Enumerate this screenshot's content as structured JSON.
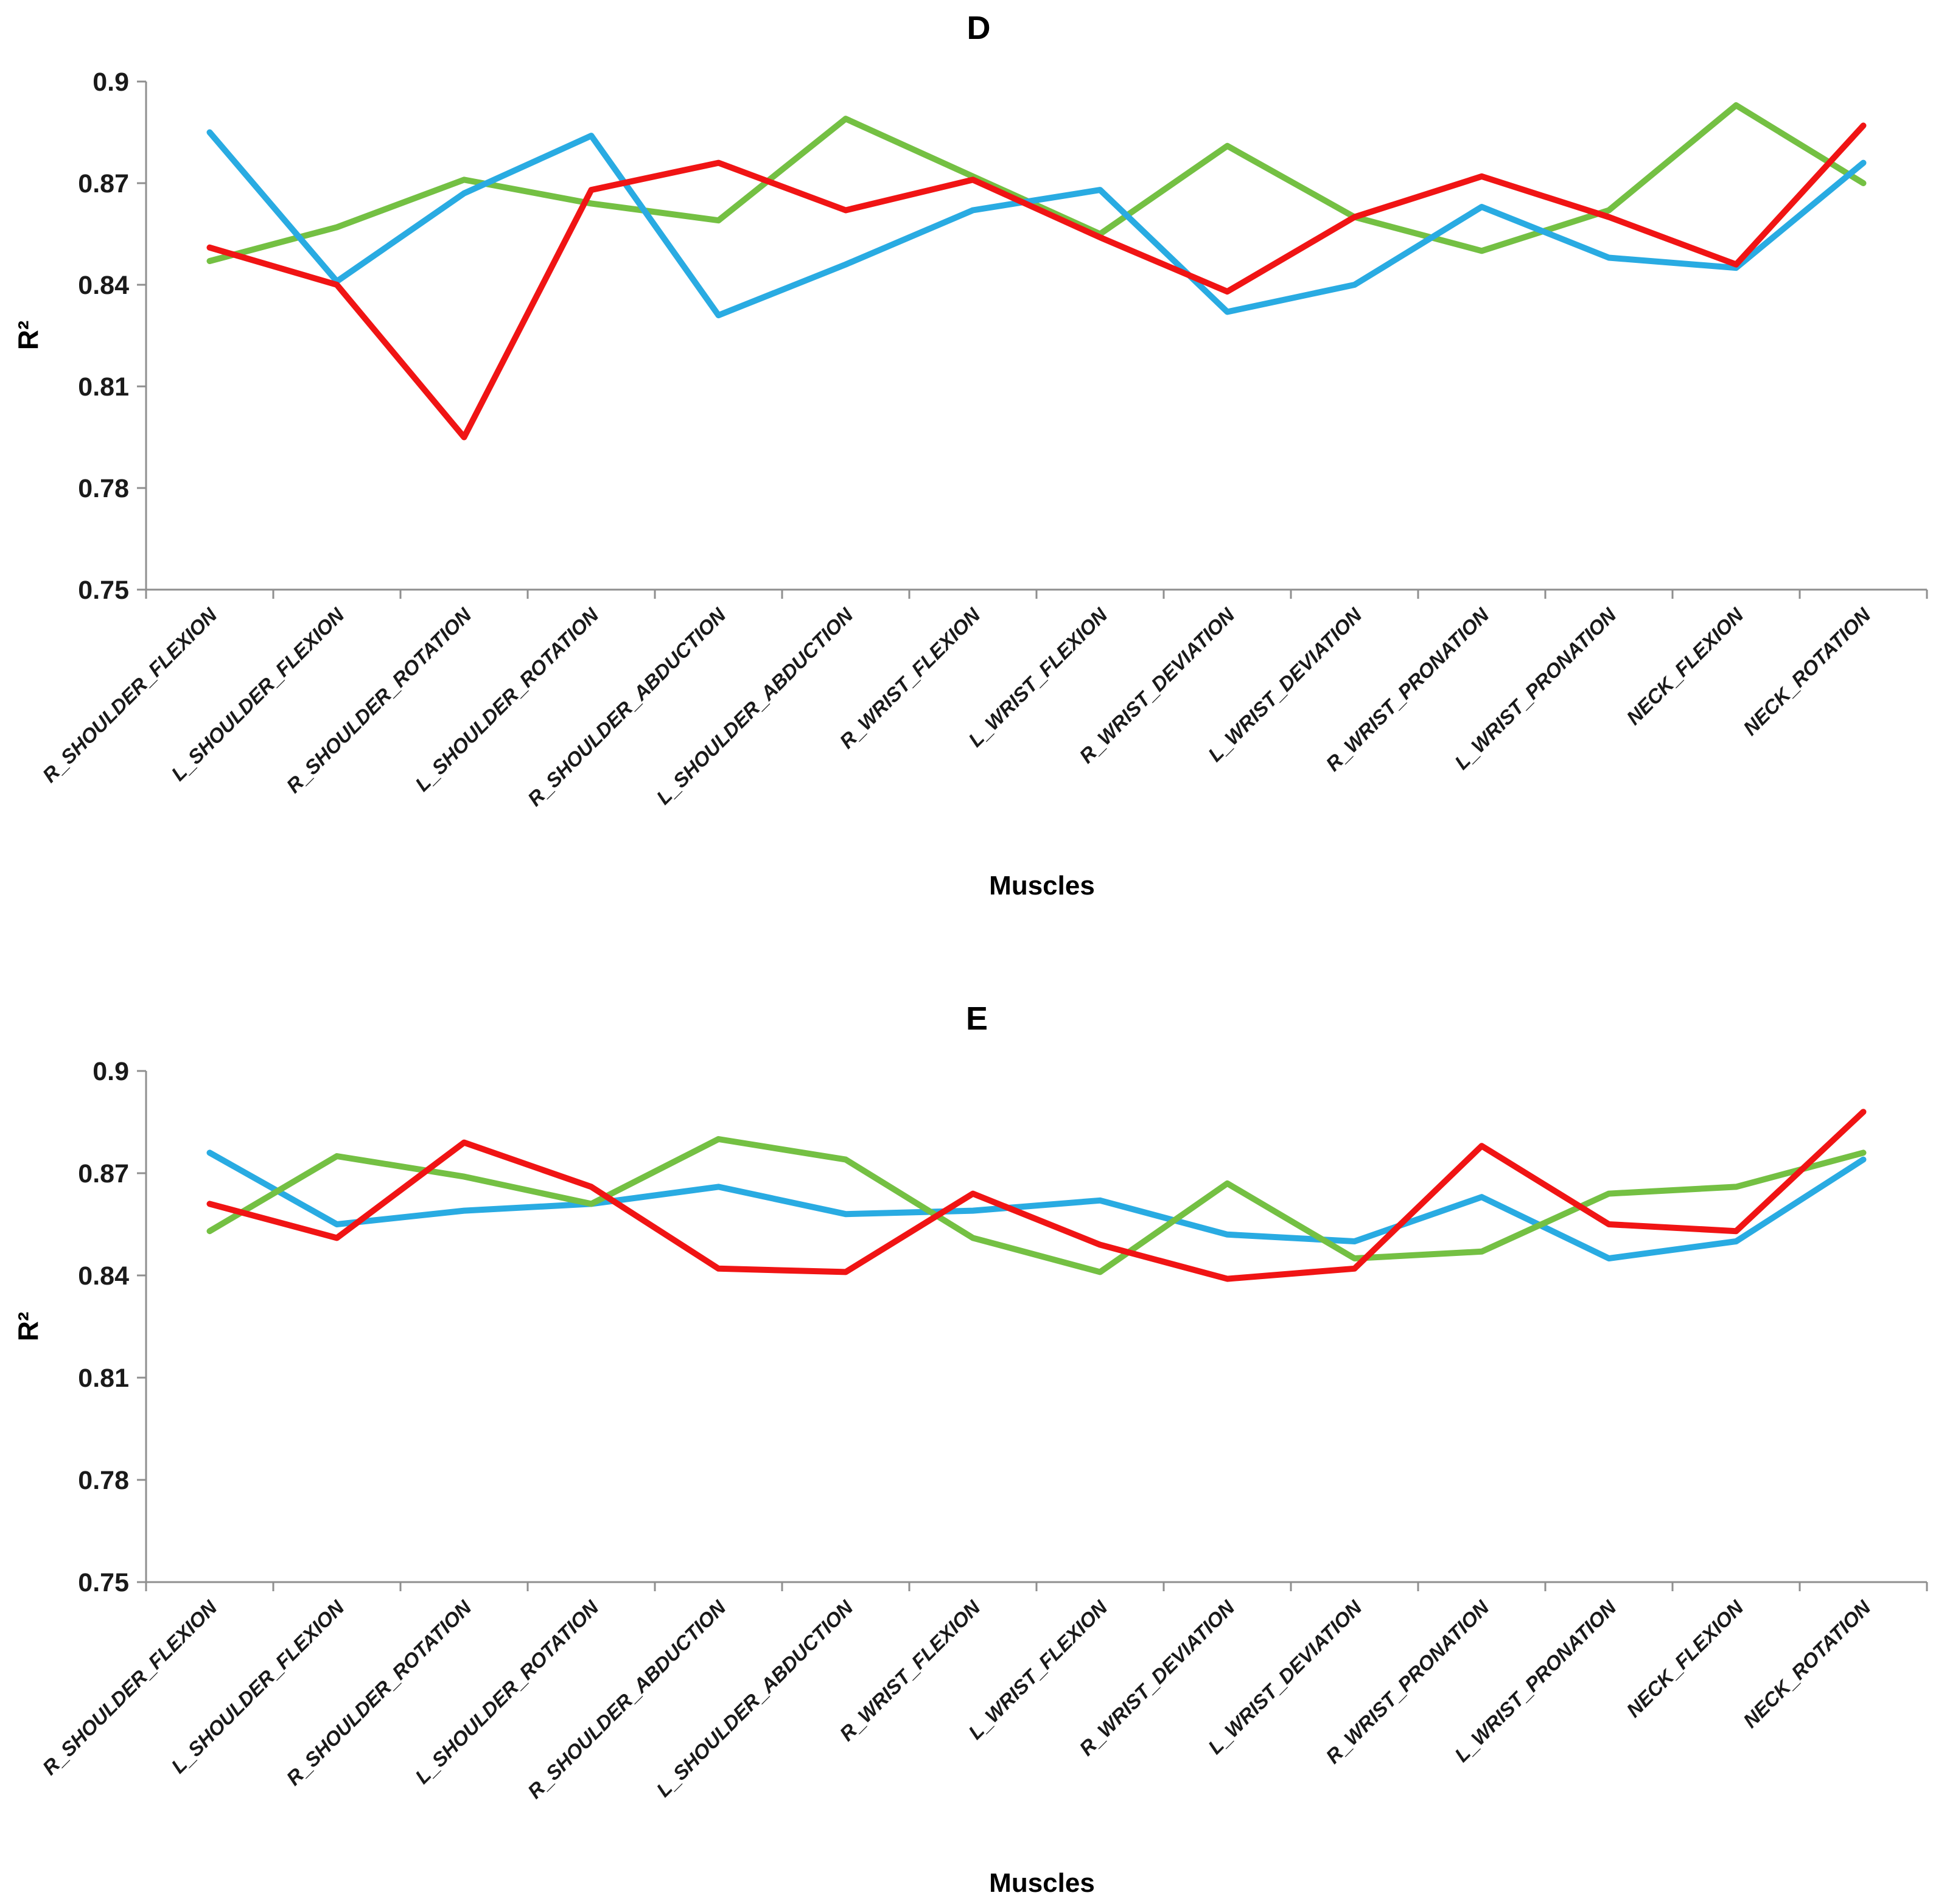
{
  "figure": {
    "background_color": "#ffffff",
    "text_color": "#1a1a1a",
    "axis_color": "#8f8f8f"
  },
  "chart_data": [
    {
      "type": "line",
      "title": "D",
      "xlabel": "Muscles",
      "ylabel": "R²",
      "ylim": [
        0.75,
        0.9
      ],
      "yticks": [
        "0.9",
        "0.87",
        "0.84",
        "0.81",
        "0.78",
        "0.75"
      ],
      "grid": false,
      "legend": "none",
      "categories": [
        "R_SHOULDER_FLEXION",
        "L_SHOULDER_FLEXION",
        "R_SHOULDER_ROTATION",
        "L_SHOULDER_ROTATION",
        "R_SHOULDER_ABDUCTION",
        "L_SHOULDER_ABDUCTION",
        "R_WRIST_FLEXION",
        "L_WRIST_FLEXION",
        "R_WRIST_DEVIATION",
        "L_WRIST_DEVIATION",
        "R_WRIST_PRONATION",
        "L_WRIST_PRONATION",
        "NECK_FLEXION",
        "NECK_ROTATION"
      ],
      "series": [
        {
          "name": "series-green",
          "color": "#74C043",
          "values": [
            0.847,
            0.857,
            0.871,
            0.864,
            0.859,
            0.889,
            0.872,
            0.855,
            0.881,
            0.86,
            0.85,
            0.862,
            0.893,
            0.87
          ]
        },
        {
          "name": "series-blue",
          "color": "#29ABE2",
          "values": [
            0.885,
            0.841,
            0.867,
            0.884,
            0.831,
            0.846,
            0.862,
            0.868,
            0.832,
            0.84,
            0.863,
            0.848,
            0.845,
            0.876
          ]
        },
        {
          "name": "series-red",
          "color": "#F01414",
          "values": [
            0.851,
            0.84,
            0.795,
            0.868,
            0.876,
            0.862,
            0.871,
            0.854,
            0.838,
            0.86,
            0.872,
            0.86,
            0.846,
            0.887
          ]
        }
      ]
    },
    {
      "type": "line",
      "title": "E",
      "xlabel": "Muscles",
      "ylabel": "R²",
      "ylim": [
        0.75,
        0.9
      ],
      "yticks": [
        "0.9",
        "0.87",
        "0.84",
        "0.81",
        "0.78",
        "0.75"
      ],
      "grid": false,
      "legend": "none",
      "categories": [
        "R_SHOULDER_FLEXION",
        "L_SHOULDER_FLEXION",
        "R_SHOULDER_ROTATION",
        "L_SHOULDER_ROTATION",
        "R_SHOULDER_ABDUCTION",
        "L_SHOULDER_ABDUCTION",
        "R_WRIST_FLEXION",
        "L_WRIST_FLEXION",
        "R_WRIST_DEVIATION",
        "L_WRIST_DEVIATION",
        "R_WRIST_PRONATION",
        "L_WRIST_PRONATION",
        "NECK_FLEXION",
        "NECK_ROTATION"
      ],
      "series": [
        {
          "name": "series-blue",
          "color": "#29ABE2",
          "values": [
            0.876,
            0.855,
            0.859,
            0.861,
            0.866,
            0.858,
            0.859,
            0.862,
            0.852,
            0.85,
            0.863,
            0.845,
            0.85,
            0.874
          ]
        },
        {
          "name": "series-green",
          "color": "#74C043",
          "values": [
            0.853,
            0.875,
            0.869,
            0.861,
            0.88,
            0.874,
            0.851,
            0.841,
            0.867,
            0.845,
            0.847,
            0.864,
            0.866,
            0.876
          ]
        },
        {
          "name": "series-red",
          "color": "#F01414",
          "values": [
            0.861,
            0.851,
            0.879,
            0.866,
            0.842,
            0.841,
            0.864,
            0.849,
            0.839,
            0.842,
            0.878,
            0.855,
            0.853,
            0.888
          ]
        }
      ]
    }
  ]
}
